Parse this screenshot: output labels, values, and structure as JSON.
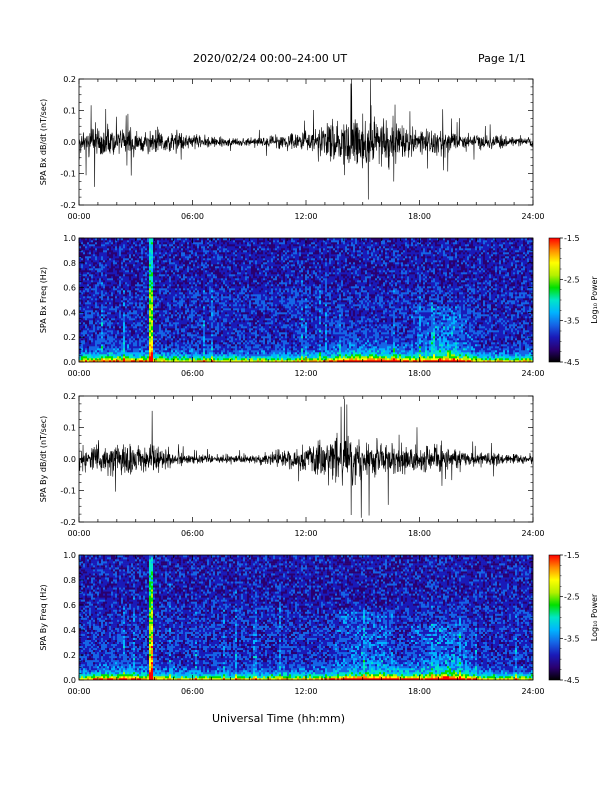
{
  "header": {
    "title": "2020/02/24  00:00–24:00 UT",
    "page": "Page 1/1"
  },
  "footer": {
    "xlabel": "Universal Time (hh:mm)"
  },
  "colors": {
    "trace": "#000000",
    "colormap": [
      "#000000",
      "#2a0070",
      "#1a1ab8",
      "#1565e6",
      "#00b4ff",
      "#00e6c8",
      "#00e000",
      "#b4f000",
      "#ffff00",
      "#ff8c00",
      "#ff0000"
    ]
  },
  "chart_data": [
    {
      "type": "line",
      "ylabel": "SPA Bx dB/dt (nT/sec)",
      "xlim": [
        0,
        24
      ],
      "x_ticks": [
        "00:00",
        "06:00",
        "12:00",
        "18:00",
        "24:00"
      ],
      "ylim": [
        -0.2,
        0.2
      ],
      "y_ticks": [
        "-0.2",
        "-0.1",
        "0.0",
        "0.1",
        "0.2"
      ],
      "series": [
        {
          "x": [
            0,
            1,
            2,
            3,
            4,
            5,
            6,
            7,
            8,
            9,
            10,
            11,
            12,
            13,
            14,
            15,
            16,
            17,
            18,
            19,
            20,
            21,
            22,
            23,
            24
          ],
          "envelope": [
            0.06,
            0.14,
            0.09,
            0.09,
            0.1,
            0.08,
            0.05,
            0.04,
            0.03,
            0.03,
            0.04,
            0.06,
            0.08,
            0.14,
            0.19,
            0.2,
            0.17,
            0.13,
            0.08,
            0.1,
            0.07,
            0.05,
            0.05,
            0.04,
            0.03
          ]
        }
      ]
    },
    {
      "type": "heatmap",
      "ylabel": "SPA Bx Freq (Hz)",
      "xlim": [
        0,
        24
      ],
      "x_ticks": [
        "00:00",
        "06:00",
        "12:00",
        "18:00",
        "24:00"
      ],
      "ylim": [
        0.0,
        1.0
      ],
      "y_ticks": [
        "0.0",
        "0.2",
        "0.4",
        "0.6",
        "0.8",
        "1.0"
      ],
      "colorbar": {
        "label": "Log₁₀ Power",
        "range": [
          -4.5,
          -1.5
        ],
        "ticks": [
          "-1.5",
          "-2.5",
          "-3.5",
          "-4.5"
        ]
      }
    },
    {
      "type": "line",
      "ylabel": "SPA By dB/dt (nT/sec)",
      "xlim": [
        0,
        24
      ],
      "x_ticks": [
        "00:00",
        "06:00",
        "12:00",
        "18:00",
        "24:00"
      ],
      "ylim": [
        -0.2,
        0.2
      ],
      "y_ticks": [
        "-0.2",
        "-0.1",
        "0.0",
        "0.1",
        "0.2"
      ],
      "series": [
        {
          "x": [
            0,
            1,
            2,
            3,
            4,
            5,
            6,
            7,
            8,
            9,
            10,
            11,
            12,
            13,
            14,
            15,
            16,
            17,
            18,
            19,
            20,
            21,
            22,
            23,
            24
          ],
          "envelope": [
            0.07,
            0.13,
            0.12,
            0.11,
            0.13,
            0.06,
            0.03,
            0.03,
            0.03,
            0.03,
            0.04,
            0.07,
            0.09,
            0.14,
            0.18,
            0.17,
            0.13,
            0.12,
            0.09,
            0.11,
            0.07,
            0.05,
            0.05,
            0.04,
            0.03
          ]
        }
      ]
    },
    {
      "type": "heatmap",
      "ylabel": "SPA By Freq (Hz)",
      "xlim": [
        0,
        24
      ],
      "x_ticks": [
        "00:00",
        "06:00",
        "12:00",
        "18:00",
        "24:00"
      ],
      "ylim": [
        0.0,
        1.0
      ],
      "y_ticks": [
        "0.0",
        "0.2",
        "0.4",
        "0.6",
        "0.8",
        "1.0"
      ],
      "colorbar": {
        "label": "Log₁₀ Power",
        "range": [
          -4.5,
          -1.5
        ],
        "ticks": [
          "-1.5",
          "-2.5",
          "-3.5",
          "-4.5"
        ]
      }
    }
  ]
}
